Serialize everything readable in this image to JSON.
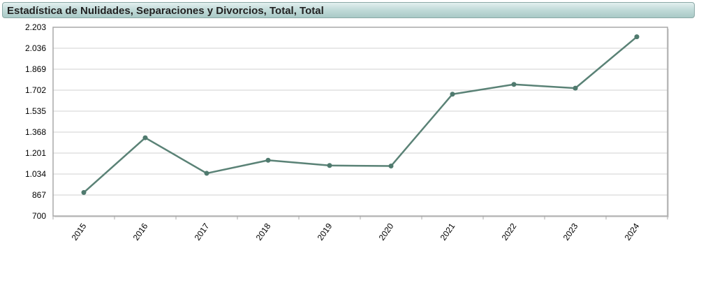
{
  "header": {
    "title": "Estadística de Nulidades, Separaciones y Divorcios, Total, Total"
  },
  "colors": {
    "line": "#5a8276",
    "point": "#4f7a6e",
    "grid": "#d0d0d0",
    "frame": "#a8a8a8",
    "title_bg": "#b7d4d1"
  },
  "chart_data": {
    "type": "line",
    "title": "Estadística de Nulidades, Separaciones y Divorcios, Total, Total",
    "xlabel": "",
    "ylabel": "",
    "categories": [
      "2015",
      "2016",
      "2017",
      "2018",
      "2019",
      "2020",
      "2021",
      "2022",
      "2023",
      "2024"
    ],
    "series": [
      {
        "values": [
          887,
          1323,
          1040,
          1144,
          1102,
          1098,
          1670,
          1748,
          1718,
          2127
        ]
      }
    ],
    "ylim": [
      700,
      2203
    ],
    "yticks": [
      "2.203",
      "2.036",
      "1.869",
      "1.702",
      "1.535",
      "1.368",
      "1.201",
      "1.034",
      "867",
      "700"
    ],
    "grid": true,
    "legend": "none"
  }
}
